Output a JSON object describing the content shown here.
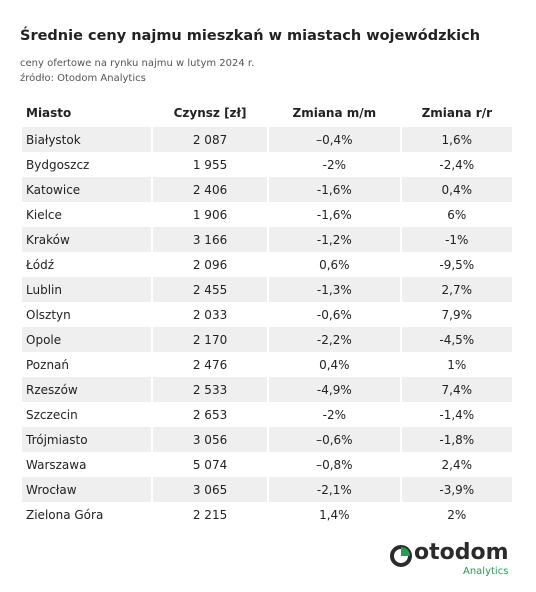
{
  "header": {
    "title": "Średnie ceny najmu mieszkań w miastach wojewódzkich",
    "subtitle": "ceny ofertowe na rynku najmu  w lutym 2024 r.",
    "source": "źródło: Otodom Analytics"
  },
  "table": {
    "columns": [
      "Miasto",
      "Czynsz [zł]",
      "Zmiana m/m",
      "Zmiana r/r"
    ],
    "rows": [
      [
        "Białystok",
        "2 087",
        "–0,4%",
        "1,6%"
      ],
      [
        "Bydgoszcz",
        "1 955",
        "-2%",
        "-2,4%"
      ],
      [
        "Katowice",
        "2 406",
        "-1,6%",
        "0,4%"
      ],
      [
        "Kielce",
        "1 906",
        "-1,6%",
        "6%"
      ],
      [
        "Kraków",
        "3 166",
        "-1,2%",
        "-1%"
      ],
      [
        "Łódź",
        "2 096",
        "0,6%",
        "-9,5%"
      ],
      [
        "Lublin",
        "2 455",
        "-1,3%",
        "2,7%"
      ],
      [
        "Olsztyn",
        "2 033",
        "-0,6%",
        "7,9%"
      ],
      [
        "Opole",
        "2 170",
        "-2,2%",
        "-4,5%"
      ],
      [
        "Poznań",
        "2 476",
        "0,4%",
        "1%"
      ],
      [
        "Rzeszów",
        "2 533",
        "-4,9%",
        "7,4%"
      ],
      [
        "Szczecin",
        "2 653",
        "-2%",
        "-1,4%"
      ],
      [
        "Trójmiasto",
        "3 056",
        "–0,6%",
        "-1,8%"
      ],
      [
        "Warszawa",
        "5 074",
        "–0,8%",
        "2,4%"
      ],
      [
        "Wrocław",
        "3 065",
        "-2,1%",
        "-3,9%"
      ],
      [
        "Zielona Góra",
        "2 215",
        "1,4%",
        "2%"
      ]
    ]
  },
  "logo": {
    "name": "otodom",
    "tagline": "Analytics"
  }
}
